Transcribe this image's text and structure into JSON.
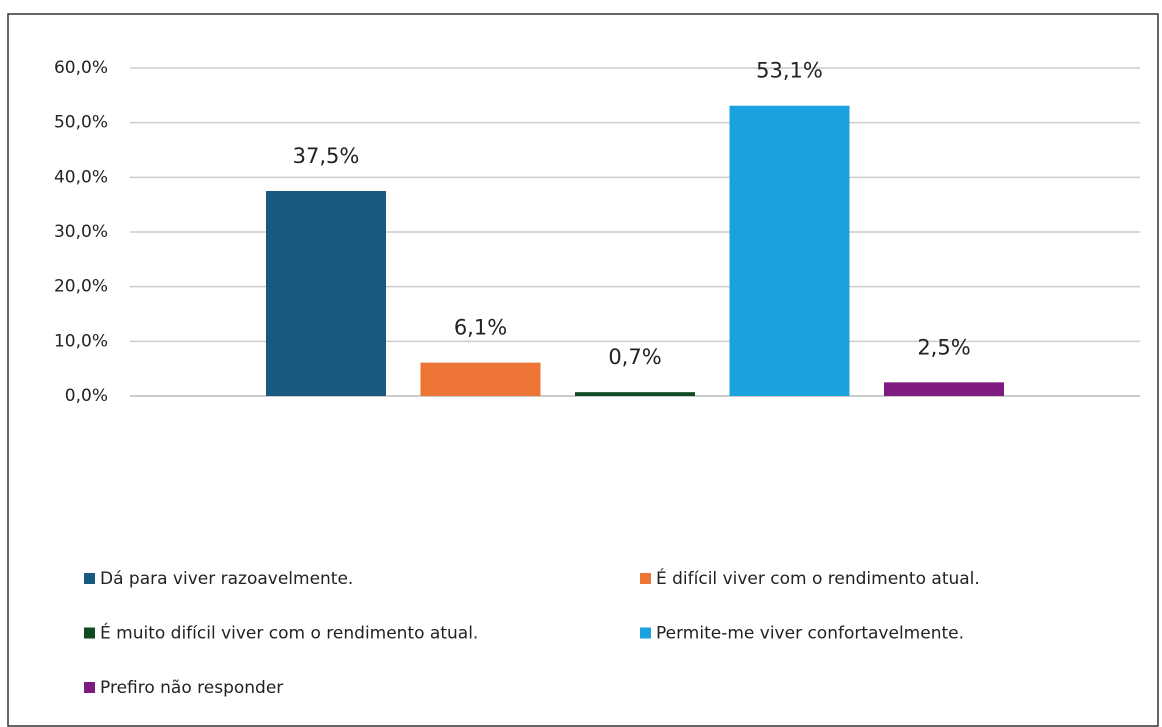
{
  "chart_data": {
    "type": "bar",
    "categories": [
      "Dá para viver razoavelmente.",
      "É difícil viver com o rendimento atual.",
      "É muito difícil viver com o rendimento atual.",
      "Permite-me viver confortavelmente.",
      "Prefiro não responder"
    ],
    "values": [
      37.5,
      6.1,
      0.7,
      53.1,
      2.5
    ],
    "value_labels": [
      "37,5%",
      "6,1%",
      "0,7%",
      "53,1%",
      "2,5%"
    ],
    "colors": [
      "#17597f",
      "#ec7434",
      "#0f4a20",
      "#1ba1dd",
      "#7f1a7e"
    ],
    "ylim": [
      0,
      60
    ],
    "yticks": [
      {
        "value": 0,
        "label": "0,0%"
      },
      {
        "value": 10,
        "label": "10,0%"
      },
      {
        "value": 20,
        "label": "20,0%"
      },
      {
        "value": 30,
        "label": "30,0%"
      },
      {
        "value": 40,
        "label": "40,0%"
      },
      {
        "value": 50,
        "label": "50,0%"
      },
      {
        "value": 60,
        "label": "60,0%"
      }
    ],
    "grid": true,
    "legend": "bottom"
  }
}
